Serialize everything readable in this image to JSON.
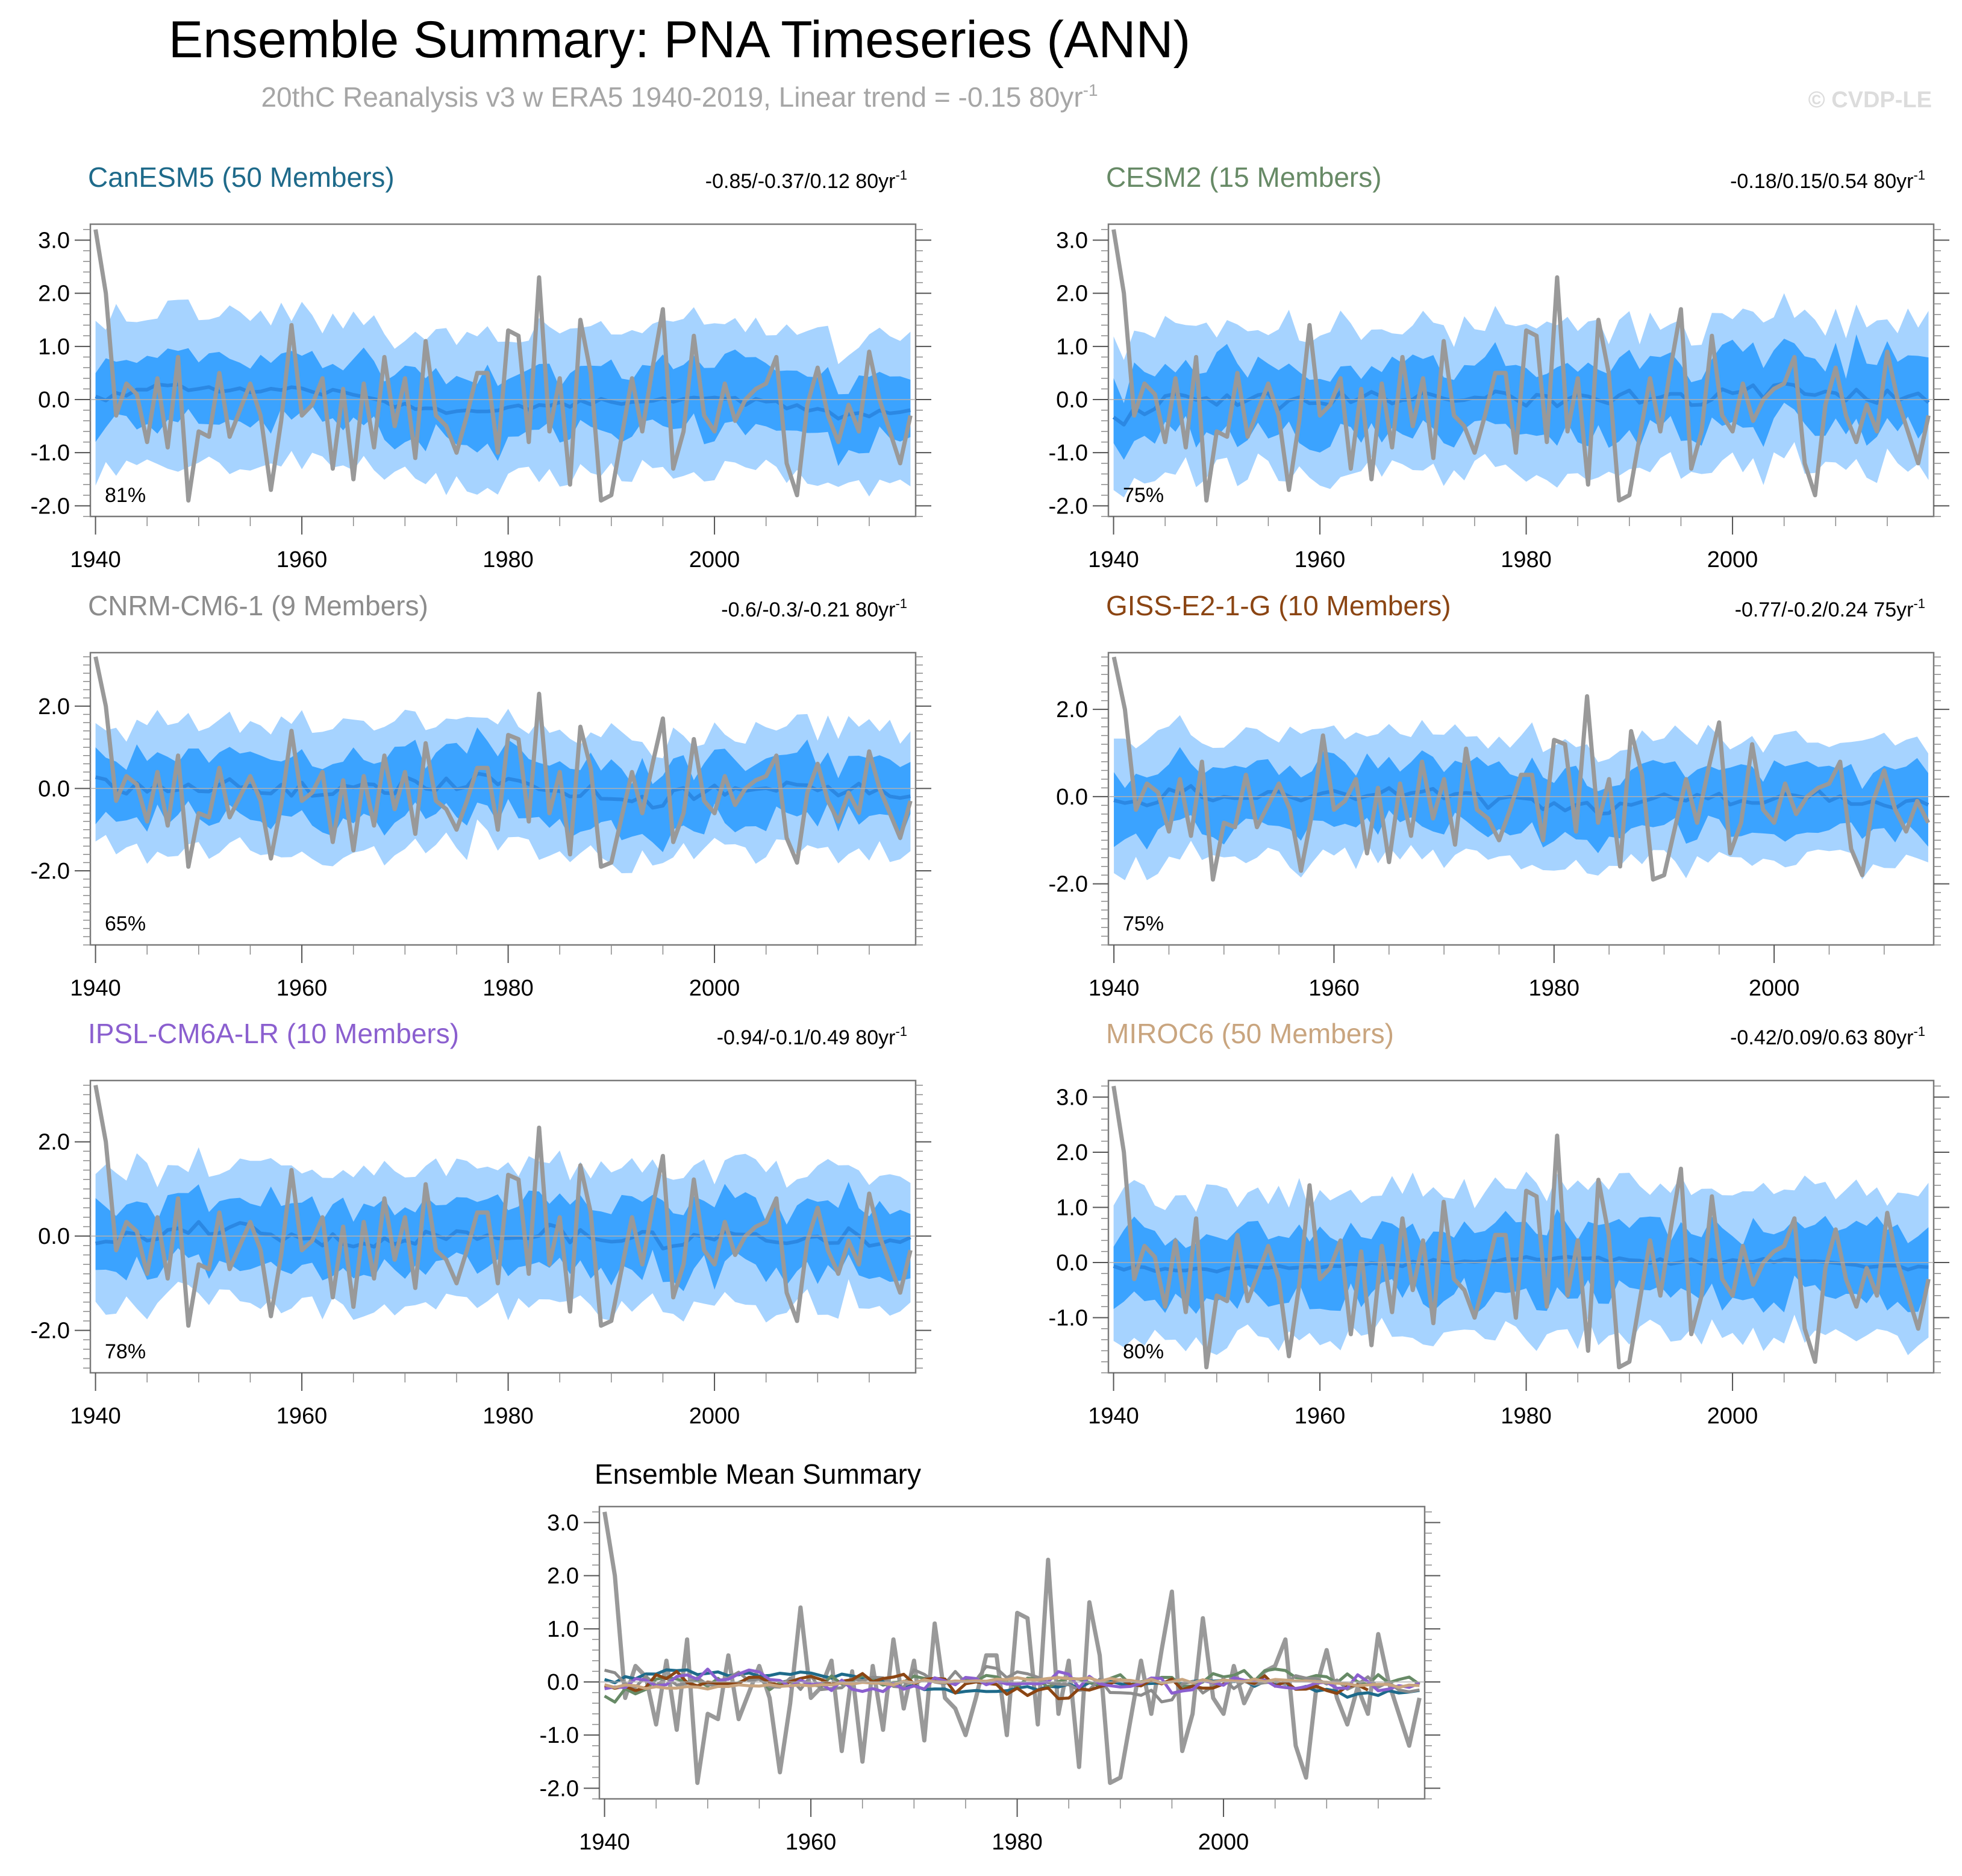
{
  "title": "Ensemble Summary: PNA Timeseries (ANN)",
  "subtitle_main": "20thC Reanalysis v3 w ERA5 1940-2019, Linear trend = -0.15 80yr",
  "subtitle_sup": "-1",
  "watermark": "© CVDP-LE",
  "unit_sup": "-1",
  "colors": {
    "observed": "#999999",
    "band_outer": "#a6d3ff",
    "band_inner": "#3ba3ff",
    "ens_mean": "#2b88e3",
    "CanESM5": "#1e6a8a",
    "CESM2": "#678a66",
    "CNRM-CM6-1": "#8c8c8c",
    "GISS-E2-1-G": "#8b4513",
    "IPSL-CM6A-LR": "#8b5fcf",
    "MIROC6": "#c9a57f"
  },
  "chart_data": [
    {
      "type": "line",
      "panel": "CanESM5",
      "title": "CanESM5 (50 Members)",
      "trend_text": "-0.85/-0.37/0.12 80yr",
      "percent_label": "81%",
      "ylim": [
        -2.2,
        3.3
      ],
      "y_ticks": [
        -2.0,
        -1.0,
        0.0,
        1.0,
        2.0,
        3.0
      ],
      "y_tick_labels": [
        "-2.0",
        "-1.0",
        "0.0",
        "1.0",
        "2.0",
        "3.0"
      ],
      "x_ticks": [
        1940,
        1960,
        1980,
        2000
      ],
      "xlim": [
        1939.5,
        2019.5
      ],
      "end_year": 2019,
      "mean_profile": [
        0.0,
        0.25,
        0.15,
        0.2,
        0.1,
        -0.15,
        -0.25,
        -0.15,
        -0.05,
        0.0,
        0.0,
        -0.1,
        -0.35,
        -0.2
      ],
      "seed": 11,
      "spread_inner": 0.6,
      "spread_outer": 1.35,
      "mean_noise": 0.07
    },
    {
      "type": "line",
      "panel": "CESM2",
      "title": "CESM2 (15 Members)",
      "trend_text": "-0.18/0.15/0.54 80yr",
      "percent_label": "75%",
      "ylim": [
        -2.2,
        3.3
      ],
      "y_ticks": [
        -2.0,
        -1.0,
        0.0,
        1.0,
        2.0,
        3.0
      ],
      "y_tick_labels": [
        "-2.0",
        "-1.0",
        "0.0",
        "1.0",
        "2.0",
        "3.0"
      ],
      "x_ticks": [
        1940,
        1960,
        1980,
        2000
      ],
      "xlim": [
        1939.5,
        2019.5
      ],
      "end_year": 2019,
      "mean_profile": [
        -0.4,
        0.1,
        0.0,
        -0.05,
        0.05,
        0.0,
        0.1,
        0.0,
        0.05,
        0.0,
        0.1,
        0.2,
        0.1,
        0.0
      ],
      "seed": 23,
      "spread_inner": 0.65,
      "spread_outer": 1.35,
      "mean_noise": 0.16
    },
    {
      "type": "line",
      "panel": "CNRM-CM6-1",
      "title": "CNRM-CM6-1 (9 Members)",
      "trend_text": "-0.6/-0.3/-0.21 80yr",
      "percent_label": "65%",
      "ylim": [
        -3.8,
        3.3
      ],
      "y_ticks": [
        -2.0,
        0.0,
        2.0
      ],
      "y_tick_labels": [
        "-2.0",
        "0.0",
        "2.0"
      ],
      "x_ticks": [
        1940,
        1960,
        1980,
        2000
      ],
      "xlim": [
        1939.5,
        2019.5
      ],
      "end_year": 2019,
      "mean_profile": [
        0.1,
        -0.05,
        0.1,
        0.0,
        0.0,
        0.1,
        0.2,
        0.05,
        -0.1,
        -0.3,
        0.0,
        0.05,
        0.0,
        -0.1
      ],
      "seed": 37,
      "spread_inner": 0.75,
      "spread_outer": 1.45,
      "mean_noise": 0.2
    },
    {
      "type": "line",
      "panel": "GISS-E2-1-G",
      "title": "GISS-E2-1-G (10 Members)",
      "trend_text": "-0.77/-0.2/0.24 75yr",
      "percent_label": "75%",
      "ylim": [
        -3.4,
        3.3
      ],
      "y_ticks": [
        -2.0,
        0.0,
        2.0
      ],
      "y_tick_labels": [
        "-2.0",
        "0.0",
        "2.0"
      ],
      "x_ticks": [
        1940,
        1960,
        1980,
        2000
      ],
      "xlim": [
        1939.5,
        2014.5
      ],
      "end_year": 2014,
      "mean_profile": [
        -0.2,
        0.1,
        0.0,
        -0.1,
        0.0,
        0.1,
        -0.1,
        -0.3,
        -0.2,
        0.0,
        -0.1,
        0.0,
        0.0,
        -0.2
      ],
      "seed": 41,
      "spread_inner": 0.7,
      "spread_outer": 1.4,
      "mean_noise": 0.18
    },
    {
      "type": "line",
      "panel": "IPSL-CM6A-LR",
      "title": "IPSL-CM6A-LR (10 Members)",
      "trend_text": "-0.94/-0.1/0.49 80yr",
      "percent_label": "78%",
      "ylim": [
        -2.9,
        3.3
      ],
      "y_ticks": [
        -2.0,
        0.0,
        2.0
      ],
      "y_tick_labels": [
        "-2.0",
        "0.0",
        "2.0"
      ],
      "x_ticks": [
        1940,
        1960,
        1980,
        2000
      ],
      "xlim": [
        1939.5,
        2019.5
      ],
      "end_year": 2019,
      "mean_profile": [
        -0.2,
        0.1,
        0.2,
        0.0,
        -0.1,
        0.0,
        0.1,
        0.1,
        0.0,
        -0.1,
        0.0,
        -0.1,
        0.0,
        -0.1
      ],
      "seed": 53,
      "spread_inner": 0.7,
      "spread_outer": 1.4,
      "mean_noise": 0.18
    },
    {
      "type": "line",
      "panel": "MIROC6",
      "title": "MIROC6 (50 Members)",
      "trend_text": "-0.42/0.09/0.63 80yr",
      "percent_label": "80%",
      "ylim": [
        -2.0,
        3.3
      ],
      "y_ticks": [
        -1.0,
        0.0,
        1.0,
        2.0,
        3.0
      ],
      "y_tick_labels": [
        "-1.0",
        "0.0",
        "1.0",
        "2.0",
        "3.0"
      ],
      "x_ticks": [
        1940,
        1960,
        1980,
        2000
      ],
      "xlim": [
        1939.5,
        2019.5
      ],
      "end_year": 2019,
      "mean_profile": [
        -0.1,
        -0.15,
        -0.1,
        -0.05,
        -0.05,
        0.0,
        0.05,
        0.1,
        0.05,
        0.0,
        0.05,
        0.0,
        -0.05,
        -0.1
      ],
      "seed": 67,
      "spread_inner": 0.6,
      "spread_outer": 1.3,
      "mean_noise": 0.05
    },
    {
      "type": "line",
      "panel": "summary",
      "title": "Ensemble Mean Summary",
      "ylim": [
        -2.2,
        3.3
      ],
      "y_ticks": [
        -2.0,
        -1.0,
        0.0,
        1.0,
        2.0,
        3.0
      ],
      "y_tick_labels": [
        "-2.0",
        "-1.0",
        "0.0",
        "1.0",
        "2.0",
        "3.0"
      ],
      "x_ticks": [
        1940,
        1960,
        1980,
        2000
      ],
      "xlim": [
        1939.5,
        2019.5
      ],
      "series": [
        "CanESM5",
        "CESM2",
        "CNRM-CM6-1",
        "GISS-E2-1-G",
        "IPSL-CM6A-LR",
        "MIROC6"
      ]
    }
  ],
  "x_tick_labels": [
    "1940",
    "1960",
    "1980",
    "2000"
  ],
  "observed": {
    "name": "20thC Reanalysis v3 w ERA5",
    "start_year": 1940,
    "values": [
      3.2,
      2.0,
      -0.3,
      0.3,
      0.1,
      -0.8,
      0.4,
      -0.9,
      0.8,
      -1.9,
      -0.6,
      -0.7,
      0.5,
      -0.7,
      -0.2,
      0.3,
      -0.3,
      -1.7,
      -0.4,
      1.4,
      -0.3,
      -0.1,
      0.4,
      -1.3,
      0.2,
      -1.5,
      0.3,
      -0.9,
      0.8,
      -0.5,
      0.4,
      -1.1,
      1.1,
      -0.3,
      -0.5,
      -1.0,
      -0.3,
      0.5,
      0.5,
      -1.0,
      1.3,
      1.2,
      -0.8,
      2.3,
      -0.6,
      0.4,
      -1.6,
      1.5,
      0.5,
      -1.9,
      -1.8,
      -0.7,
      0.4,
      -0.6,
      0.6,
      1.7,
      -1.3,
      -0.6,
      1.2,
      -0.3,
      -0.6,
      0.3,
      -0.4,
      0.0,
      0.2,
      0.3,
      0.8,
      -1.2,
      -1.8,
      -0.1,
      0.6,
      -0.3,
      -0.8,
      -0.1,
      -0.6,
      0.9,
      0.0,
      -0.6,
      -1.2,
      -0.3
    ]
  }
}
